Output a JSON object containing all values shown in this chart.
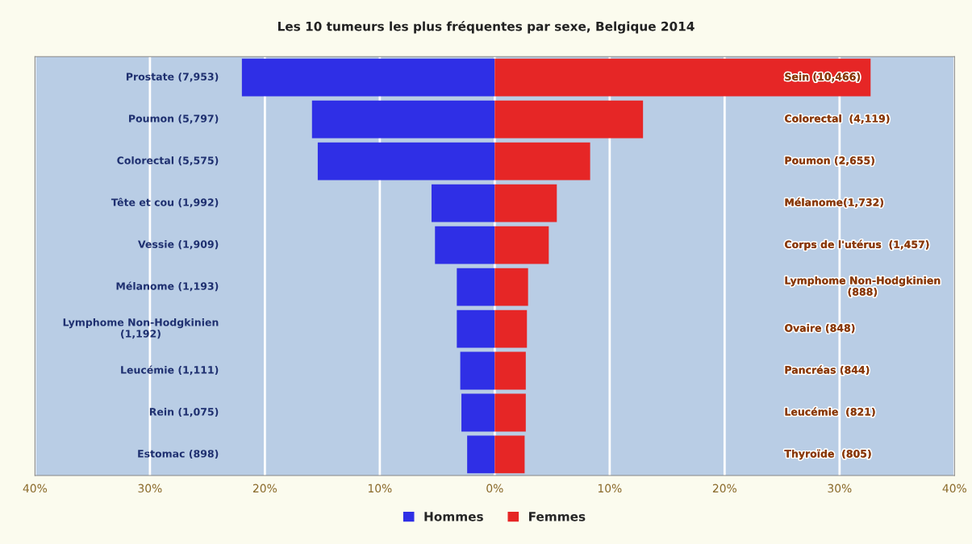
{
  "chart_data": {
    "type": "bar",
    "orientation": "horizontal",
    "stacked": true,
    "title": "Les 10 tumeurs les plus fréquentes par sexe, Belgique 2014",
    "categories": [
      "Prostate (7,953)",
      "Poumon (5,797)",
      "Colorectal (5,575)",
      "Tête et cou (1,992)",
      "Vessie (1,909)",
      "Mélanome (1,193)",
      "Lymphome Non-Hodgkinien\n(1,192)",
      "Leucémie (1,111)",
      "Rein (1,075)",
      "Estomac (898)"
    ],
    "series": [
      {
        "name": "Hommes",
        "color": "#2f2fe6",
        "values": [
          -22.0,
          -15.9,
          -15.4,
          -5.5,
          -5.2,
          -3.3,
          -3.3,
          -3.0,
          -2.9,
          -2.4
        ]
      },
      {
        "name": "Femmes",
        "color": "#e62626",
        "values": [
          32.7,
          12.9,
          8.3,
          5.4,
          4.7,
          2.9,
          2.8,
          2.7,
          2.7,
          2.6
        ]
      }
    ],
    "annotations": [
      "Sein (10,466)",
      "Colorectal  (4,119)",
      "Poumon (2,655)",
      "Mélanome(1,732)",
      "Corps de l'utérus  (1,457)",
      "Lymphome Non-Hodgkinien\n(888)",
      "Ovaire (848)",
      "Pancréas (844)",
      "Leucémie  (821)",
      "Thyroïde  (805)"
    ],
    "xlim": [
      -40,
      40
    ],
    "xticks": [
      {
        "value": -40,
        "label": "40%"
      },
      {
        "value": -30,
        "label": "30%"
      },
      {
        "value": -20,
        "label": "20%"
      },
      {
        "value": -10,
        "label": "10%"
      },
      {
        "value": 0,
        "label": "0%"
      },
      {
        "value": 10,
        "label": "10%"
      },
      {
        "value": 20,
        "label": "20%"
      },
      {
        "value": 30,
        "label": "30%"
      },
      {
        "value": 40,
        "label": "40%"
      }
    ],
    "grid": "x",
    "legend": "bottom"
  }
}
